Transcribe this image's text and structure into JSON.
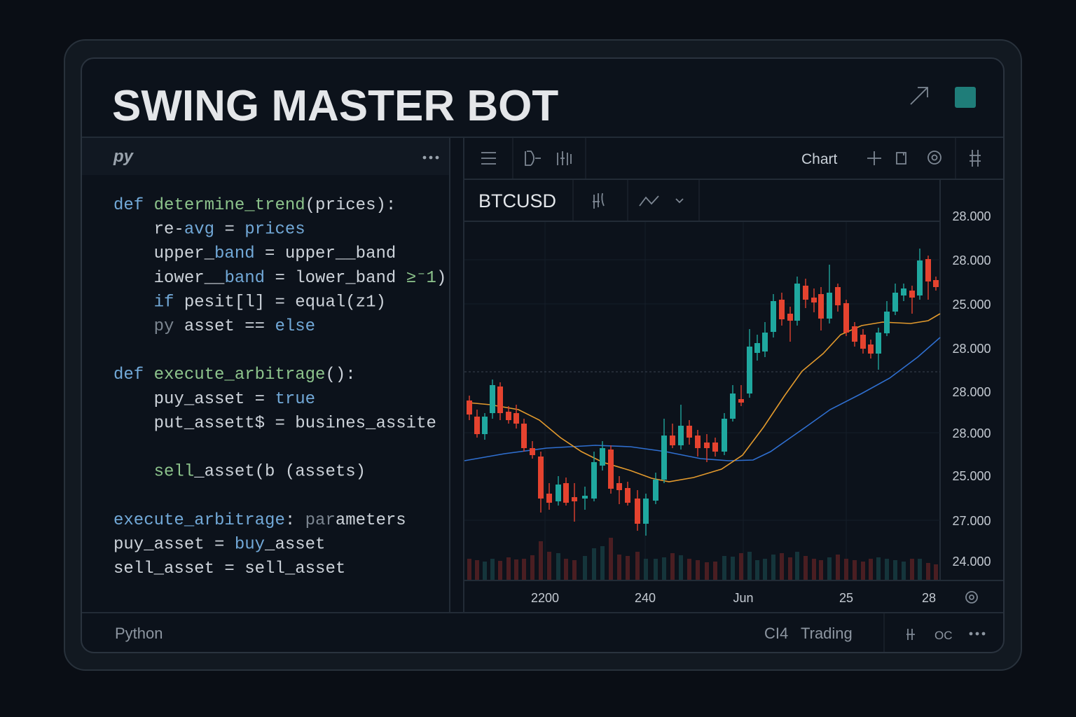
{
  "header": {
    "title": "SWING MASTER BOT"
  },
  "editor": {
    "tab": "py",
    "lines": [
      [
        {
          "text": "def ",
          "style": "keyword"
        },
        {
          "text": "determine_trend",
          "style": "function"
        },
        {
          "text": "(prices):",
          "style": "plain"
        }
      ],
      [
        {
          "text": "    re-",
          "style": "plain"
        },
        {
          "text": "avg",
          "style": "keyword"
        },
        {
          "text": " = ",
          "style": "plain"
        },
        {
          "text": "prices",
          "style": "keyword"
        }
      ],
      [
        {
          "text": "    upper_",
          "style": "plain"
        },
        {
          "text": "band",
          "style": "keyword"
        },
        {
          "text": " = upper__band",
          "style": "plain"
        }
      ],
      [
        {
          "text": "    iower__",
          "style": "plain"
        },
        {
          "text": "band",
          "style": "keyword"
        },
        {
          "text": " = lower_band ",
          "style": "plain"
        },
        {
          "text": "≥⁻1",
          "style": "function"
        },
        {
          "text": ")",
          "style": "plain"
        }
      ],
      [
        {
          "text": "    ",
          "style": "plain"
        },
        {
          "text": "if",
          "style": "keyword"
        },
        {
          "text": " pesit[l] = equal(z1)",
          "style": "plain"
        }
      ],
      [
        {
          "text": "    ",
          "style": "plain"
        },
        {
          "text": "py",
          "style": "muted"
        },
        {
          "text": " asset == ",
          "style": "plain"
        },
        {
          "text": "else",
          "style": "keyword"
        }
      ],
      [],
      [
        {
          "text": "def ",
          "style": "keyword"
        },
        {
          "text": "execute_arbitrage",
          "style": "function"
        },
        {
          "text": "():",
          "style": "plain"
        }
      ],
      [
        {
          "text": "    puy_asset = ",
          "style": "plain"
        },
        {
          "text": "true",
          "style": "keyword"
        }
      ],
      [
        {
          "text": "    put_assett$ = busines_assite",
          "style": "plain"
        }
      ],
      [],
      [
        {
          "text": "    sell",
          "style": "function"
        },
        {
          "text": "_asset(b (assets)",
          "style": "plain"
        }
      ],
      [],
      [
        {
          "text": "execute_arbitrage",
          "style": "keyword"
        },
        {
          "text": ": ",
          "style": "plain"
        },
        {
          "text": "par",
          "style": "muted"
        },
        {
          "text": "ameters",
          "style": "plain"
        }
      ],
      [
        {
          "text": "puy_asset = ",
          "style": "plain"
        },
        {
          "text": "buy",
          "style": "keyword"
        },
        {
          "text": "_asset",
          "style": "plain"
        }
      ],
      [
        {
          "text": "sell_asset = sell_asset",
          "style": "plain"
        }
      ]
    ]
  },
  "chart": {
    "toolbar_label": "Chart",
    "symbol": "BTCUSD",
    "y_labels": [
      "28.000",
      "28.000",
      "25.000",
      "28.000",
      "28.000",
      "28.000",
      "25.000",
      "27.000",
      "24.000"
    ],
    "x_labels": [
      "2200",
      "240",
      "Jun",
      "25",
      "28"
    ]
  },
  "status_bar": {
    "language": "Python",
    "items": [
      "CI4",
      "Trading",
      "OC"
    ]
  }
}
